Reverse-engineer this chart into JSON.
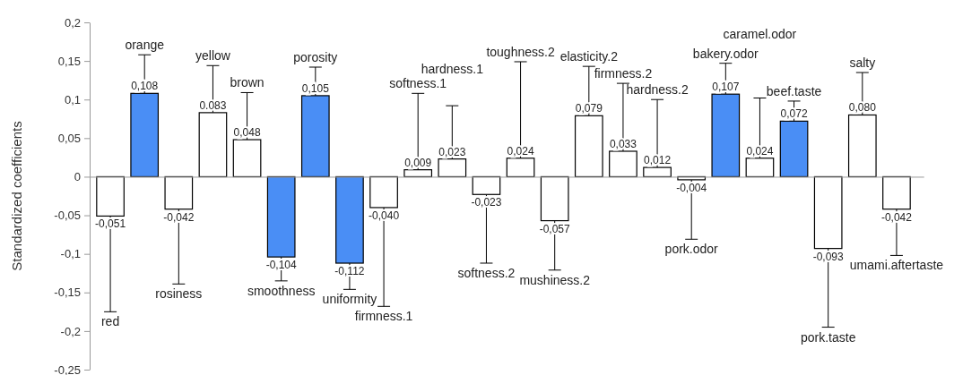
{
  "chart_data": {
    "type": "bar",
    "ylabel": "Standardized coefficients",
    "categories": [
      "red",
      "orange",
      "rosiness",
      "yellow",
      "brown",
      "smoothness",
      "porosity",
      "uniformity",
      "firmness.1",
      "softness.1",
      "hardness.1",
      "softness.2",
      "toughness.2",
      "mushiness.2",
      "elasticity.2",
      "firmness.2",
      "hardness.2",
      "pork.odor",
      "bakery.odor",
      "caramel.odor",
      "beef.taste",
      "pork.taste",
      "salty",
      "umami.aftertaste"
    ],
    "values": [
      -0.051,
      0.108,
      -0.042,
      0.083,
      0.048,
      -0.104,
      0.105,
      -0.112,
      -0.04,
      0.009,
      0.023,
      -0.023,
      0.024,
      -0.057,
      0.079,
      0.033,
      0.012,
      -0.004,
      0.107,
      0.024,
      0.072,
      -0.093,
      0.08,
      -0.042
    ],
    "value_labels": [
      "-0,051",
      "0,108",
      "-0,042",
      "0.083",
      "0,048",
      "-0,104",
      "0,105",
      "-0,112",
      "-0,040",
      "0,009",
      "0,023",
      "-0,023",
      "0,024",
      "-0,057",
      "0,079",
      "0,033",
      "0,012",
      "-0,004",
      "0,107",
      "0,024",
      "0,072",
      "-0,093",
      "0,080",
      "-0,042"
    ],
    "colors": [
      "#ffffff",
      "#4a8ef5",
      "#ffffff",
      "#ffffff",
      "#ffffff",
      "#4a8ef5",
      "#4a8ef5",
      "#4a8ef5",
      "#ffffff",
      "#ffffff",
      "#ffffff",
      "#ffffff",
      "#ffffff",
      "#ffffff",
      "#ffffff",
      "#ffffff",
      "#ffffff",
      "#ffffff",
      "#4a8ef5",
      "#ffffff",
      "#4a8ef5",
      "#ffffff",
      "#ffffff",
      "#ffffff"
    ],
    "errors": [
      [
        -0.175,
        -0.051
      ],
      [
        0.108,
        0.158
      ],
      [
        -0.139,
        -0.042
      ],
      [
        0.083,
        0.144
      ],
      [
        0.048,
        0.109
      ],
      [
        -0.135,
        -0.104
      ],
      [
        0.105,
        0.142
      ],
      [
        -0.146,
        -0.112
      ],
      [
        -0.168,
        -0.04
      ],
      [
        0.009,
        0.108
      ],
      [
        0.023,
        0.092
      ],
      [
        -0.112,
        -0.023
      ],
      [
        0.024,
        0.149
      ],
      [
        -0.121,
        -0.057
      ],
      [
        0.079,
        0.143
      ],
      [
        0.033,
        0.121
      ],
      [
        0.012,
        0.1
      ],
      [
        -0.081,
        -0.004
      ],
      [
        0.107,
        0.147
      ],
      [
        0.024,
        0.102
      ],
      [
        0.072,
        0.098
      ],
      [
        -0.195,
        -0.093
      ],
      [
        0.08,
        0.135
      ],
      [
        -0.102,
        -0.042
      ]
    ],
    "ylim": [
      -0.25,
      0.2
    ],
    "yticks": [
      {
        "value": 0.2,
        "label": "0,2"
      },
      {
        "value": 0.15,
        "label": "0,15"
      },
      {
        "value": 0.1,
        "label": "0,1"
      },
      {
        "value": 0.05,
        "label": "0,05"
      },
      {
        "value": 0,
        "label": "0"
      },
      {
        "value": -0.05,
        "label": "-0,05"
      },
      {
        "value": -0.1,
        "label": "-0,1"
      },
      {
        "value": -0.15,
        "label": "-0,15"
      },
      {
        "value": -0.2,
        "label": "-0,2"
      },
      {
        "value": -0.25,
        "label": "-0,25"
      }
    ]
  }
}
